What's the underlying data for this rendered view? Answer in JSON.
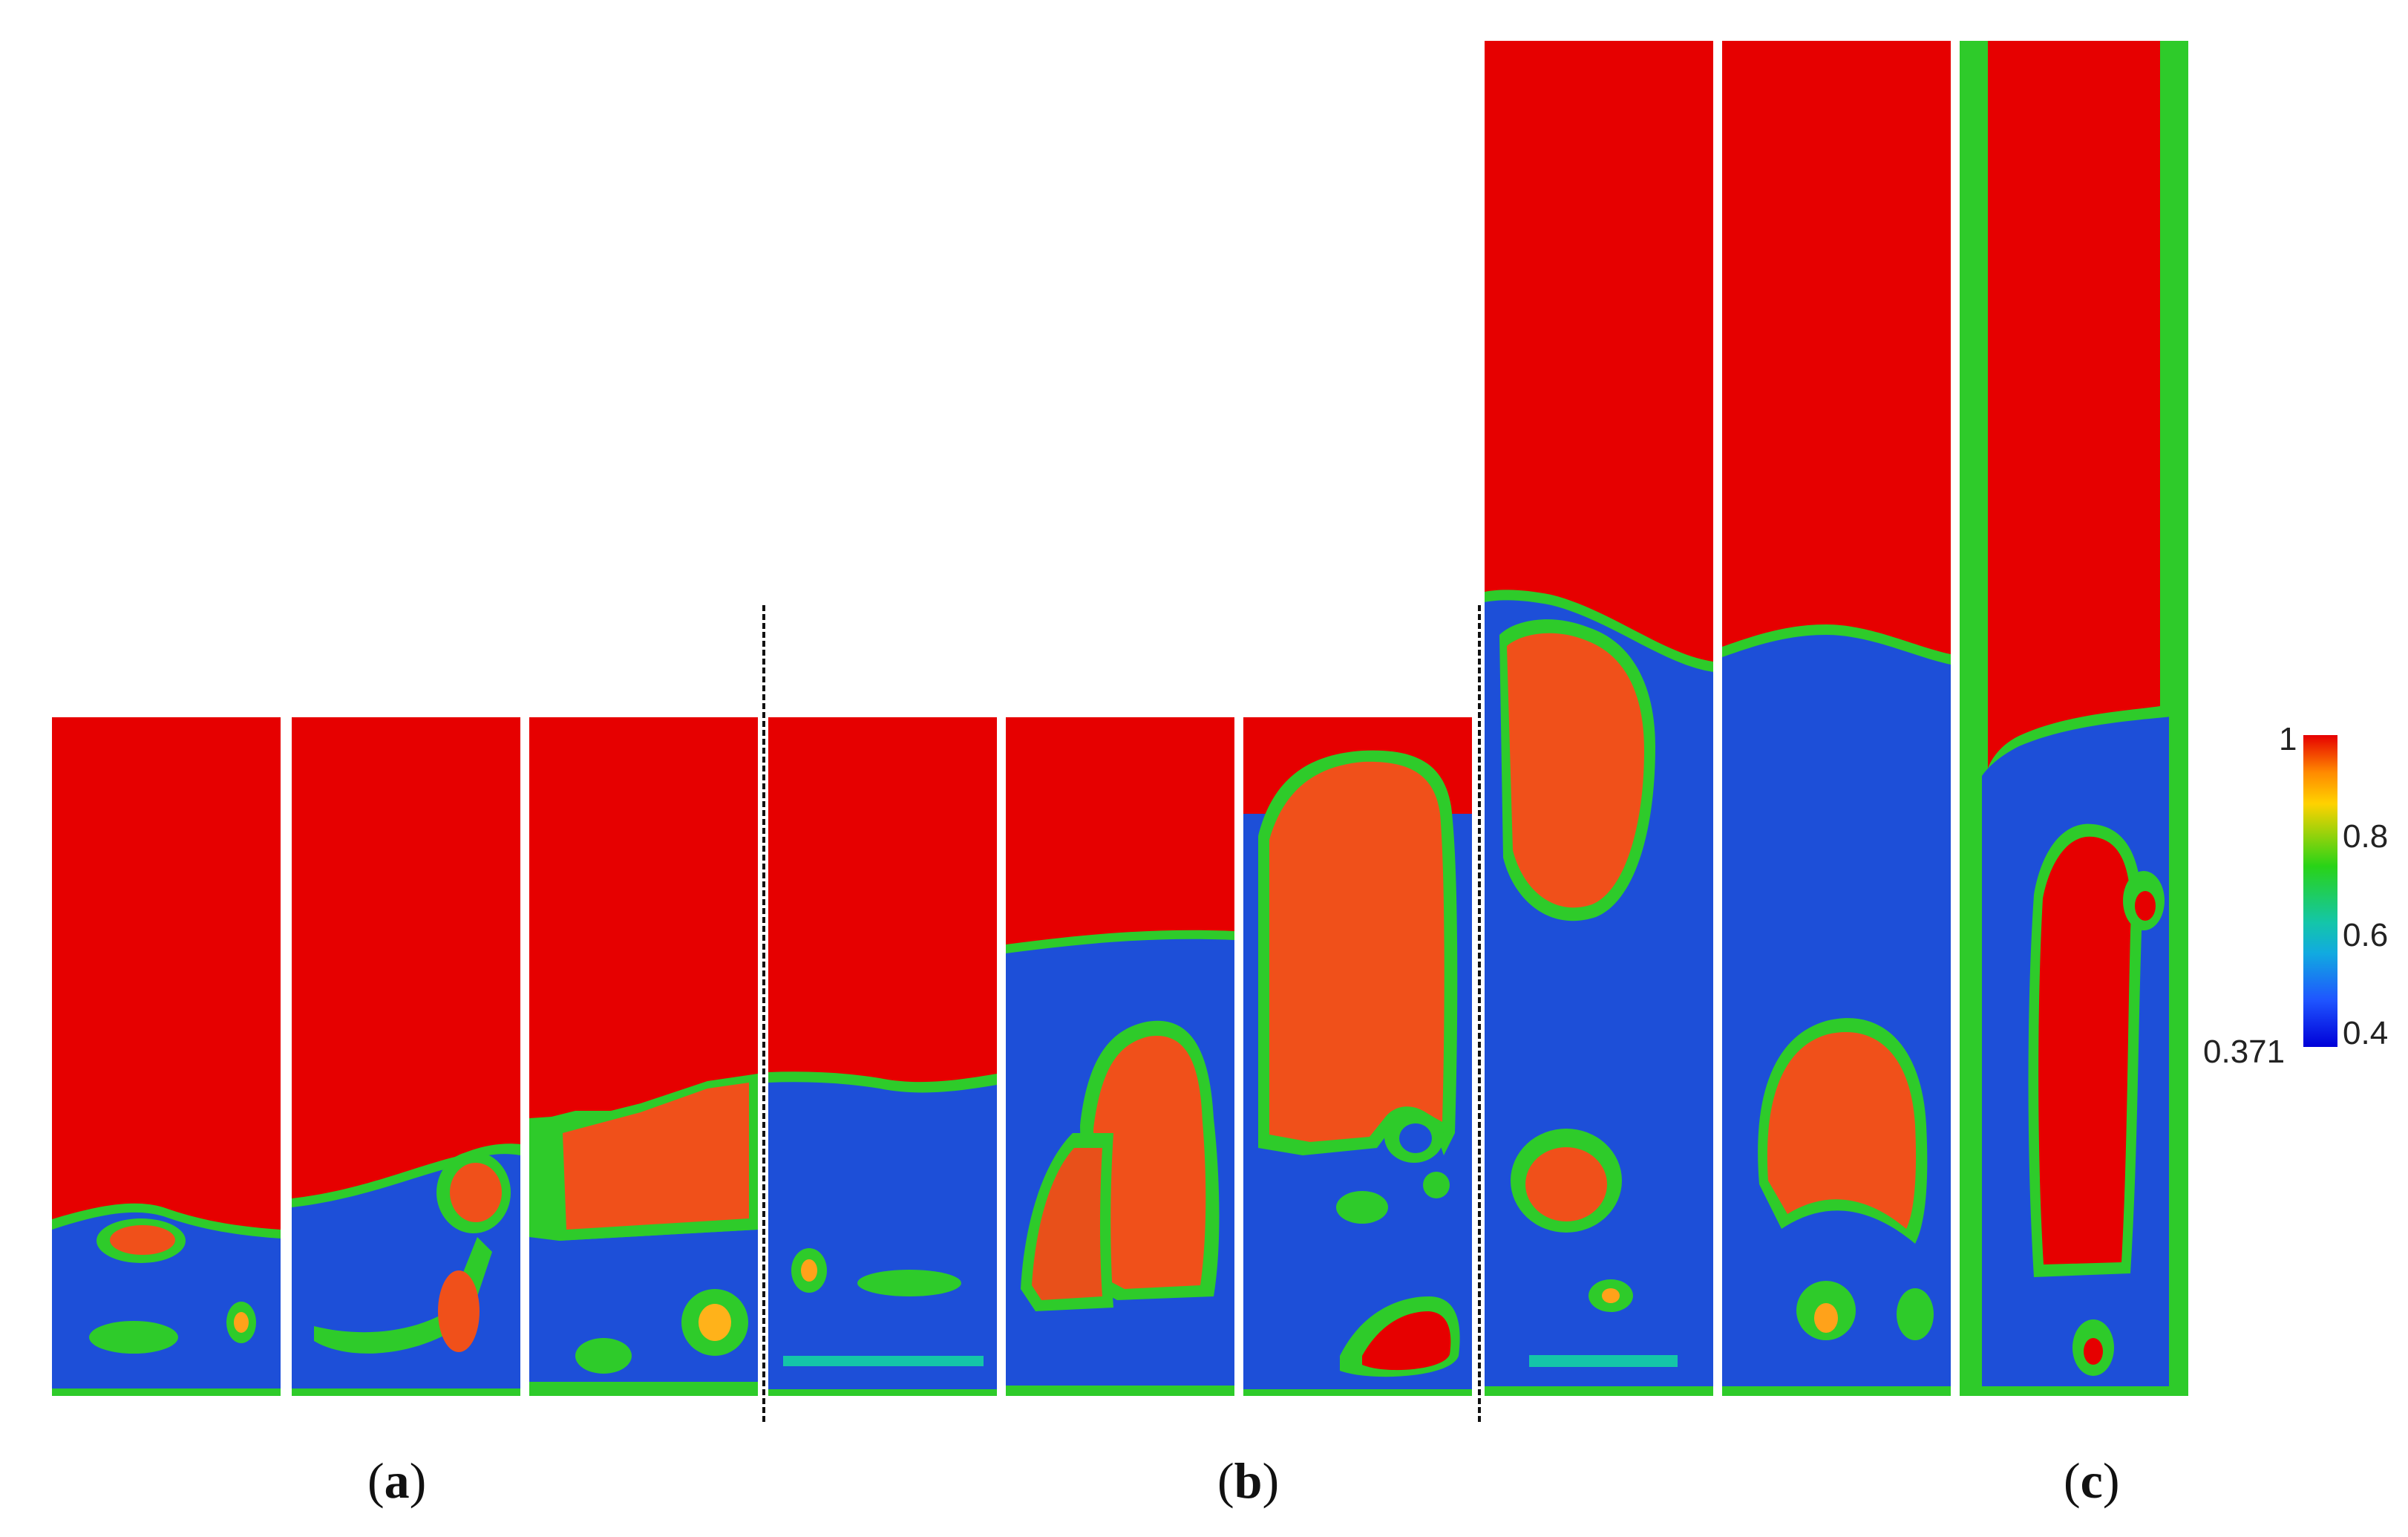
{
  "figure": {
    "group_labels": [
      {
        "id": "a",
        "text": "a"
      },
      {
        "id": "b",
        "text": "b"
      },
      {
        "id": "c",
        "text": "c"
      }
    ]
  },
  "colorbar": {
    "max_label": "1",
    "min_label": "0.371",
    "ticks": [
      "0.8",
      "0.6",
      "0.4"
    ],
    "colors": [
      "#e60000",
      "#ff8a00",
      "#ffd200",
      "#29d317",
      "#14c6a8",
      "#11aae0",
      "#1f55ff",
      "#0000d8"
    ]
  },
  "colors": {
    "void_red": "#e60000",
    "bubble_orange": "#f0501a",
    "interface_green": "#2ecb2a",
    "bed_blue": "#1d4fd8"
  }
}
